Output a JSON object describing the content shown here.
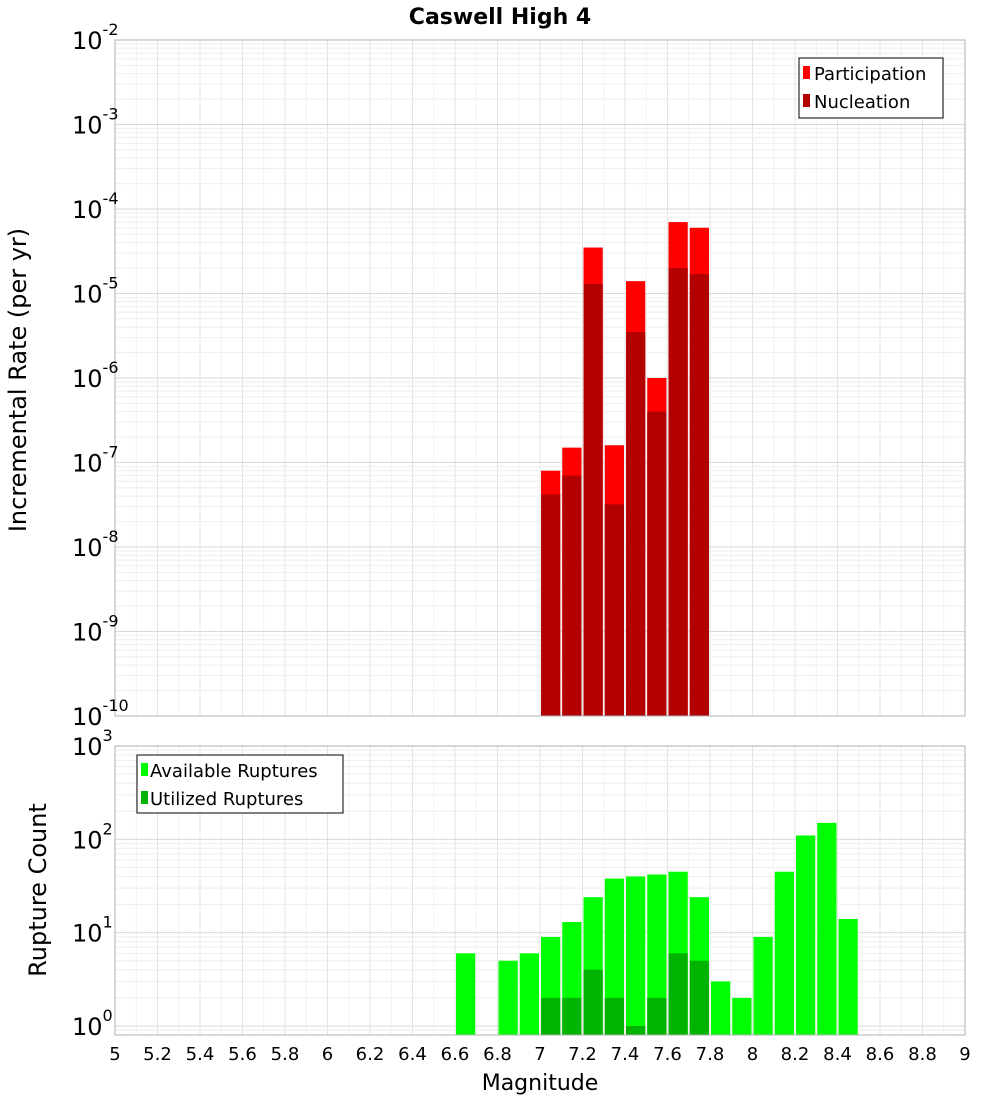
{
  "chart_data": [
    {
      "type": "bar",
      "title": "Caswell High 4",
      "xlabel": "",
      "ylabel": "Incremental Rate (per yr)",
      "y_scale": "log",
      "ylim": [
        1e-10,
        0.01
      ],
      "yticks": [
        {
          "base": "10",
          "exp": "-10"
        },
        {
          "base": "10",
          "exp": "-9"
        },
        {
          "base": "10",
          "exp": "-8"
        },
        {
          "base": "10",
          "exp": "-7"
        },
        {
          "base": "10",
          "exp": "-6"
        },
        {
          "base": "10",
          "exp": "-5"
        },
        {
          "base": "10",
          "exp": "-4"
        },
        {
          "base": "10",
          "exp": "-3"
        },
        {
          "base": "10",
          "exp": "-2"
        }
      ],
      "xlim": [
        5,
        9
      ],
      "grid": true,
      "legend_position": "top-right",
      "x": [
        7.0,
        7.1,
        7.2,
        7.3,
        7.4,
        7.5,
        7.6,
        7.7
      ],
      "series": [
        {
          "name": "Participation",
          "color": "#ff0000",
          "values": [
            8e-08,
            1.5e-07,
            3.5e-05,
            1.6e-07,
            1.4e-05,
            1e-06,
            7e-05,
            6e-05
          ]
        },
        {
          "name": "Nucleation",
          "color": "#b30000",
          "values": [
            4.2e-08,
            7e-08,
            1.3e-05,
            3.2e-08,
            3.5e-06,
            4e-07,
            2e-05,
            1.7e-05
          ]
        }
      ]
    },
    {
      "type": "bar",
      "title": "",
      "xlabel": "Magnitude",
      "ylabel": "Rupture Count",
      "y_scale": "log",
      "ylim": [
        0.8,
        1000
      ],
      "yticks": [
        {
          "base": "10",
          "exp": "0"
        },
        {
          "base": "10",
          "exp": "1"
        },
        {
          "base": "10",
          "exp": "2"
        },
        {
          "base": "10",
          "exp": "3"
        }
      ],
      "xlim": [
        5,
        9
      ],
      "xticks": [
        "5",
        "5.2",
        "5.4",
        "5.6",
        "5.8",
        "6",
        "6.2",
        "6.4",
        "6.6",
        "6.8",
        "7",
        "7.2",
        "7.4",
        "7.6",
        "7.8",
        "8",
        "8.2",
        "8.4",
        "8.6",
        "8.8",
        "9"
      ],
      "grid": true,
      "legend_position": "top-left",
      "series": [
        {
          "name": "Available Ruptures",
          "color": "#00ff00",
          "x": [
            6.6,
            6.8,
            6.9,
            7.0,
            7.1,
            7.2,
            7.3,
            7.4,
            7.5,
            7.6,
            7.7,
            7.8,
            7.9,
            8.0,
            8.1,
            8.2,
            8.3,
            8.4
          ],
          "values": [
            6,
            5,
            6,
            9,
            13,
            24,
            38,
            40,
            42,
            45,
            24,
            3,
            2,
            9,
            45,
            110,
            150,
            14
          ]
        },
        {
          "name": "Utilized Ruptures",
          "color": "#00b300",
          "x": [
            7.0,
            7.1,
            7.2,
            7.3,
            7.4,
            7.5,
            7.6,
            7.7
          ],
          "values": [
            2,
            2,
            4,
            2,
            1,
            2,
            6,
            5
          ]
        }
      ]
    }
  ]
}
